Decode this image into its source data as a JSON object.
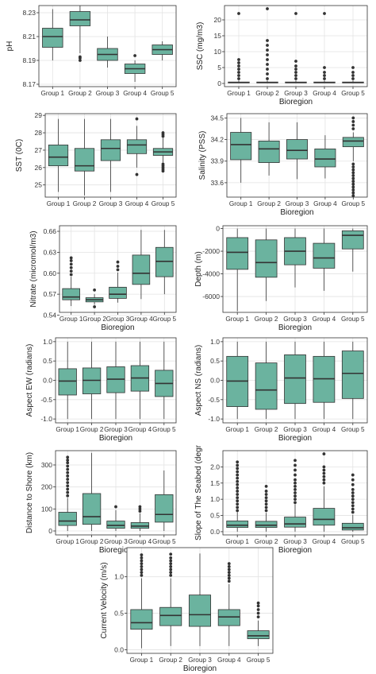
{
  "figure": {
    "box_fill": "#6bb39f",
    "box_stroke": "#333333",
    "panel_bg": "#ffffff",
    "grid_color": "#e3e3e3",
    "text_color": "#333333"
  },
  "chart_data": [
    {
      "id": "ph",
      "type": "box",
      "xlabel": "",
      "ylabel": "pH",
      "categories": [
        "Group 1",
        "Group 2",
        "Group 3",
        "Group 4",
        "Group 5"
      ],
      "ylim": [
        8.168,
        8.236
      ],
      "yticks": [
        8.17,
        8.19,
        8.21,
        8.23
      ],
      "ytick_labels": [
        "8.17",
        "8.19",
        "8.21",
        "8.23"
      ],
      "boxes": [
        {
          "low": 8.19,
          "q1": 8.201,
          "median": 8.21,
          "q3": 8.217,
          "high": 8.233,
          "outliers": []
        },
        {
          "low": 8.196,
          "q1": 8.219,
          "median": 8.224,
          "q3": 8.231,
          "high": 8.236,
          "outliers": [
            8.19,
            8.192,
            8.193
          ]
        },
        {
          "low": 8.184,
          "q1": 8.19,
          "median": 8.195,
          "q3": 8.2,
          "high": 8.21,
          "outliers": []
        },
        {
          "low": 8.172,
          "q1": 8.179,
          "median": 8.183,
          "q3": 8.187,
          "high": 8.19,
          "outliers": [
            8.194
          ]
        },
        {
          "low": 8.19,
          "q1": 8.195,
          "median": 8.199,
          "q3": 8.203,
          "high": 8.206,
          "outliers": []
        }
      ]
    },
    {
      "id": "ssc",
      "type": "box",
      "xlabel": "Bioregion",
      "ylabel": "SSC (mg/m3)",
      "categories": [
        "Group 1",
        "Group 2",
        "Group 3",
        "Group 4",
        "Group 5"
      ],
      "ylim": [
        -1,
        24.5
      ],
      "yticks": [
        0,
        5,
        10,
        15,
        20
      ],
      "ytick_labels": [
        "0",
        "5",
        "10",
        "15",
        "20"
      ],
      "boxes": [
        {
          "low": 0.1,
          "q1": 0.2,
          "median": 0.3,
          "q3": 0.45,
          "high": 0.9,
          "outliers": [
            1.5,
            2.5,
            3.5,
            4.5,
            5.5,
            6.5,
            7.5,
            22
          ]
        },
        {
          "low": 0.1,
          "q1": 0.2,
          "median": 0.3,
          "q3": 0.45,
          "high": 0.9,
          "outliers": [
            1.5,
            3,
            4.5,
            6,
            7.5,
            9,
            10.5,
            12,
            13.5,
            23.5
          ]
        },
        {
          "low": 0.1,
          "q1": 0.2,
          "median": 0.3,
          "q3": 0.45,
          "high": 0.9,
          "outliers": [
            1.5,
            2.5,
            3.5,
            4.5,
            5.5,
            7,
            22
          ]
        },
        {
          "low": 0.1,
          "q1": 0.2,
          "median": 0.3,
          "q3": 0.45,
          "high": 0.9,
          "outliers": [
            1.5,
            2.5,
            3.5,
            5,
            22
          ]
        },
        {
          "low": 0.1,
          "q1": 0.2,
          "median": 0.3,
          "q3": 0.45,
          "high": 0.9,
          "outliers": [
            1.5,
            2.5,
            3.5,
            5
          ]
        }
      ]
    },
    {
      "id": "sst",
      "type": "box",
      "xlabel": "",
      "ylabel": "SST (0C)",
      "categories": [
        "Group 1",
        "Group 2",
        "Group 3",
        "Group 4",
        "Group 5"
      ],
      "ylim": [
        24.3,
        29.1
      ],
      "yticks": [
        25,
        26,
        27,
        28,
        29
      ],
      "ytick_labels": [
        "25",
        "26",
        "27",
        "28",
        "29"
      ],
      "boxes": [
        {
          "low": 24.6,
          "q1": 26.1,
          "median": 26.6,
          "q3": 27.3,
          "high": 28.8,
          "outliers": []
        },
        {
          "low": 24.4,
          "q1": 25.8,
          "median": 26.1,
          "q3": 27.1,
          "high": 28.8,
          "outliers": []
        },
        {
          "low": 24.6,
          "q1": 26.4,
          "median": 27.1,
          "q3": 27.6,
          "high": 28.8,
          "outliers": []
        },
        {
          "low": 26.0,
          "q1": 26.8,
          "median": 27.3,
          "q3": 27.6,
          "high": 28.4,
          "outliers": [
            28.8,
            25.6
          ]
        },
        {
          "low": 26.3,
          "q1": 26.7,
          "median": 26.9,
          "q3": 27.1,
          "high": 27.7,
          "outliers": [
            25.8,
            25.9,
            26.0,
            26.1,
            26.2,
            27.8,
            27.9,
            28.0
          ]
        }
      ]
    },
    {
      "id": "salinity",
      "type": "box",
      "xlabel": "Bioregion",
      "ylabel": "Salinity (PSS)",
      "categories": [
        "Group 1",
        "Group 2",
        "Group 3",
        "Group 4",
        "Group 5"
      ],
      "ylim": [
        33.4,
        34.56
      ],
      "yticks": [
        33.6,
        33.9,
        34.2,
        34.5
      ],
      "ytick_labels": [
        "33.6",
        "33.9",
        "34.2",
        "34.5"
      ],
      "boxes": [
        {
          "low": 33.6,
          "q1": 33.92,
          "median": 34.13,
          "q3": 34.3,
          "high": 34.5,
          "outliers": []
        },
        {
          "low": 33.7,
          "q1": 33.88,
          "median": 34.07,
          "q3": 34.18,
          "high": 34.44,
          "outliers": []
        },
        {
          "low": 33.65,
          "q1": 33.93,
          "median": 34.05,
          "q3": 34.2,
          "high": 34.44,
          "outliers": []
        },
        {
          "low": 33.66,
          "q1": 33.82,
          "median": 33.93,
          "q3": 34.07,
          "high": 34.26,
          "outliers": []
        },
        {
          "low": 33.9,
          "q1": 34.1,
          "median": 34.18,
          "q3": 34.23,
          "high": 34.3,
          "outliers": [
            33.42,
            33.46,
            33.5,
            33.54,
            33.58,
            33.62,
            33.66,
            33.7,
            33.74,
            33.78,
            33.82,
            33.86,
            34.35,
            34.4,
            34.45,
            34.5
          ]
        }
      ]
    },
    {
      "id": "nitrate",
      "type": "box",
      "xlabel": "Bioregion",
      "ylabel": "Nitrate (micromol/m3)",
      "categories": [
        "Group 1",
        "Group 2",
        "Group 3",
        "Group 4",
        "Group 5"
      ],
      "ylim": [
        0.544,
        0.668
      ],
      "yticks": [
        0.54,
        0.57,
        0.6,
        0.63,
        0.66
      ],
      "ytick_labels": [
        "0.54",
        "0.57",
        "0.60",
        "0.63",
        "0.66"
      ],
      "boxes": [
        {
          "low": 0.553,
          "q1": 0.562,
          "median": 0.566,
          "q3": 0.578,
          "high": 0.595,
          "outliers": [
            0.598,
            0.603,
            0.608,
            0.613,
            0.618,
            0.622
          ]
        },
        {
          "low": 0.555,
          "q1": 0.559,
          "median": 0.562,
          "q3": 0.565,
          "high": 0.57,
          "outliers": [
            0.576,
            0.552
          ]
        },
        {
          "low": 0.558,
          "q1": 0.564,
          "median": 0.57,
          "q3": 0.58,
          "high": 0.601,
          "outliers": [
            0.605,
            0.61,
            0.616
          ]
        },
        {
          "low": 0.563,
          "q1": 0.584,
          "median": 0.6,
          "q3": 0.626,
          "high": 0.662,
          "outliers": []
        },
        {
          "low": 0.57,
          "q1": 0.595,
          "median": 0.617,
          "q3": 0.637,
          "high": 0.662,
          "outliers": []
        }
      ]
    },
    {
      "id": "depth",
      "type": "box",
      "xlabel": "Bioregion",
      "ylabel": "Depth (m)",
      "categories": [
        "Group 1",
        "Group 2",
        "Group 3",
        "Group 4",
        "Group 5"
      ],
      "ylim": [
        -7400,
        250
      ],
      "yticks": [
        -6000,
        -4000,
        -2000,
        0
      ],
      "ytick_labels": [
        "-6000",
        "-4000",
        "-2000",
        "0"
      ],
      "boxes": [
        {
          "low": -7300,
          "q1": -3600,
          "median": -2100,
          "q3": -800,
          "high": 0,
          "outliers": []
        },
        {
          "low": -6400,
          "q1": -4300,
          "median": -3000,
          "q3": -1000,
          "high": 0,
          "outliers": []
        },
        {
          "low": -5200,
          "q1": -3200,
          "median": -2000,
          "q3": -800,
          "high": 0,
          "outliers": []
        },
        {
          "low": -5500,
          "q1": -3500,
          "median": -2600,
          "q3": -1300,
          "high": 0,
          "outliers": []
        },
        {
          "low": -3800,
          "q1": -1800,
          "median": -600,
          "q3": -200,
          "high": 0,
          "outliers": []
        }
      ]
    },
    {
      "id": "aspect_ew",
      "type": "box",
      "xlabel": "Bioregion",
      "ylabel": "Aspect EW (radians)",
      "categories": [
        "Group 1",
        "Group 2",
        "Group 3",
        "Group 4",
        "Group 5"
      ],
      "ylim": [
        -1.1,
        1.1
      ],
      "yticks": [
        -1,
        -0.5,
        0,
        0.5,
        1
      ],
      "ytick_labels": [
        "-1.0",
        "-0.5",
        "0.0",
        "0.5",
        "1.0"
      ],
      "boxes": [
        {
          "low": -1,
          "q1": -0.38,
          "median": -0.02,
          "q3": 0.3,
          "high": 1,
          "outliers": []
        },
        {
          "low": -1,
          "q1": -0.35,
          "median": 0.0,
          "q3": 0.32,
          "high": 1,
          "outliers": []
        },
        {
          "low": -1,
          "q1": -0.32,
          "median": 0.03,
          "q3": 0.35,
          "high": 1,
          "outliers": []
        },
        {
          "low": -1,
          "q1": -0.28,
          "median": 0.06,
          "q3": 0.38,
          "high": 1,
          "outliers": []
        },
        {
          "low": -1,
          "q1": -0.42,
          "median": -0.08,
          "q3": 0.26,
          "high": 1,
          "outliers": []
        }
      ]
    },
    {
      "id": "aspect_ns",
      "type": "box",
      "xlabel": "Bioregion",
      "ylabel": "Aspect NS (radians)",
      "categories": [
        "Group 1",
        "Group 2",
        "Group 3",
        "Group 4",
        "Group 5"
      ],
      "ylim": [
        -1.1,
        1.1
      ],
      "yticks": [
        -1,
        -0.5,
        0,
        0.5,
        1
      ],
      "ytick_labels": [
        "-1.0",
        "-0.5",
        "0.0",
        "0.5",
        "1.0"
      ],
      "boxes": [
        {
          "low": -1,
          "q1": -0.68,
          "median": -0.02,
          "q3": 0.62,
          "high": 1,
          "outliers": []
        },
        {
          "low": -1,
          "q1": -0.75,
          "median": -0.25,
          "q3": 0.45,
          "high": 1,
          "outliers": []
        },
        {
          "low": -1,
          "q1": -0.6,
          "median": 0.06,
          "q3": 0.66,
          "high": 1,
          "outliers": []
        },
        {
          "low": -1,
          "q1": -0.57,
          "median": 0.04,
          "q3": 0.62,
          "high": 1,
          "outliers": []
        },
        {
          "low": -1,
          "q1": -0.47,
          "median": 0.18,
          "q3": 0.76,
          "high": 1,
          "outliers": []
        }
      ]
    },
    {
      "id": "distance",
      "type": "box",
      "xlabel": "Bioregion",
      "ylabel": "Distance to Shore (km)",
      "categories": [
        "Group 1",
        "Group 2",
        "Group 3",
        "Group 4",
        "Group 5"
      ],
      "ylim": [
        -18,
        365
      ],
      "yticks": [
        0,
        100,
        200,
        300
      ],
      "ytick_labels": [
        "0",
        "100",
        "200",
        "300"
      ],
      "boxes": [
        {
          "low": 0,
          "q1": 25,
          "median": 45,
          "q3": 85,
          "high": 150,
          "outliers": [
            160,
            175,
            190,
            205,
            220,
            235,
            250,
            265,
            280,
            295,
            310,
            322,
            335
          ]
        },
        {
          "low": 0,
          "q1": 30,
          "median": 65,
          "q3": 170,
          "high": 355,
          "outliers": []
        },
        {
          "low": 0,
          "q1": 12,
          "median": 25,
          "q3": 45,
          "high": 95,
          "outliers": [
            110
          ]
        },
        {
          "low": 0,
          "q1": 12,
          "median": 22,
          "q3": 38,
          "high": 80,
          "outliers": [
            90,
            100,
            110
          ]
        },
        {
          "low": 0,
          "q1": 40,
          "median": 75,
          "q3": 165,
          "high": 275,
          "outliers": []
        }
      ]
    },
    {
      "id": "slope",
      "type": "box",
      "xlabel": "Bioregion",
      "ylabel": "Slope of The Seabed (degr",
      "categories": [
        "Group 1",
        "Group 2",
        "Group 3",
        "Group 4",
        "Group 5"
      ],
      "ylim": [
        -0.1,
        2.5
      ],
      "yticks": [
        0,
        0.5,
        1,
        1.5,
        2
      ],
      "ytick_labels": [
        "0.0",
        "0.5",
        "1.0",
        "1.5",
        "2.0"
      ],
      "boxes": [
        {
          "low": 0.0,
          "q1": 0.13,
          "median": 0.2,
          "q3": 0.33,
          "high": 0.6,
          "outliers": [
            0.65,
            0.75,
            0.85,
            0.95,
            1.05,
            1.15,
            1.25,
            1.35,
            1.45,
            1.55,
            1.65,
            1.75,
            1.85,
            1.95,
            2.05,
            2.15
          ]
        },
        {
          "low": 0.0,
          "q1": 0.13,
          "median": 0.2,
          "q3": 0.32,
          "high": 0.58,
          "outliers": [
            0.65,
            0.75,
            0.85,
            0.95,
            1.05,
            1.15,
            1.25,
            1.4
          ]
        },
        {
          "low": 0.0,
          "q1": 0.14,
          "median": 0.24,
          "q3": 0.45,
          "high": 0.85,
          "outliers": [
            0.9,
            1.0,
            1.1,
            1.2,
            1.3,
            1.4,
            1.5,
            1.6,
            1.75,
            1.9,
            2.05,
            2.2
          ]
        },
        {
          "low": 0.0,
          "q1": 0.2,
          "median": 0.38,
          "q3": 0.72,
          "high": 1.4,
          "outliers": [
            1.5,
            1.6,
            1.7,
            1.8,
            1.9,
            2.0,
            2.4
          ]
        },
        {
          "low": 0.0,
          "q1": 0.05,
          "median": 0.12,
          "q3": 0.26,
          "high": 0.52,
          "outliers": [
            0.6,
            0.7,
            0.8,
            0.9,
            1.0,
            1.1,
            1.2,
            1.3,
            1.45,
            1.6,
            1.75
          ]
        }
      ]
    },
    {
      "id": "current",
      "type": "box",
      "xlabel": "Bioregion",
      "ylabel": "Current Velocity (m/s)",
      "categories": [
        "Group 1",
        "Group 2",
        "Group 3",
        "Group 4",
        "Group 5"
      ],
      "ylim": [
        -0.05,
        1.4
      ],
      "yticks": [
        0,
        0.5,
        1
      ],
      "ytick_labels": [
        "0.0",
        "0.5",
        "1.0"
      ],
      "boxes": [
        {
          "low": 0.02,
          "q1": 0.28,
          "median": 0.37,
          "q3": 0.55,
          "high": 0.98,
          "outliers": [
            1.02,
            1.06,
            1.1,
            1.14,
            1.18,
            1.22,
            1.26,
            1.3
          ]
        },
        {
          "low": 0.05,
          "q1": 0.33,
          "median": 0.47,
          "q3": 0.58,
          "high": 0.98,
          "outliers": [
            1.02,
            1.06,
            1.1,
            1.14,
            1.18,
            1.22,
            1.26,
            1.31
          ]
        },
        {
          "low": 0.05,
          "q1": 0.32,
          "median": 0.48,
          "q3": 0.75,
          "high": 1.32,
          "outliers": []
        },
        {
          "low": 0.05,
          "q1": 0.33,
          "median": 0.45,
          "q3": 0.55,
          "high": 0.9,
          "outliers": [
            0.94,
            0.98,
            1.02,
            1.06,
            1.1,
            1.14,
            1.18
          ]
        },
        {
          "low": 0.05,
          "q1": 0.15,
          "median": 0.19,
          "q3": 0.26,
          "high": 0.4,
          "outliers": [
            0.45,
            0.5,
            0.55,
            0.6,
            0.64
          ]
        }
      ]
    }
  ]
}
